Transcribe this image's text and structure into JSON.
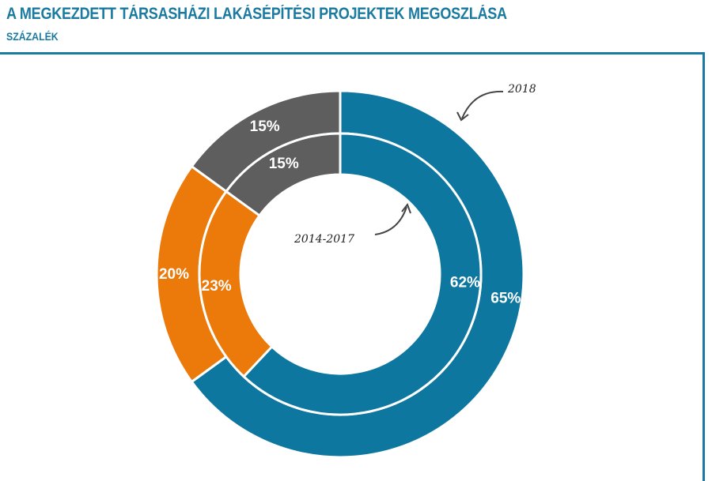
{
  "title": "A MEGKEZDETT TÁRSASHÁZI LAKÁSÉPÍTÉSI PROJEKTEK MEGOSZLÁSA",
  "subtitle": "SZÁZALÉK",
  "chart_data": {
    "type": "pie",
    "variant": "double-donut",
    "title": "A MEGKEZDETT TÁRSASHÁZI LAKÁSÉPÍTÉSI PROJEKTEK MEGOSZLÁSA",
    "subtitle": "SZÁZALÉK",
    "legend": "none",
    "colors": [
      "#0d77a0",
      "#eb7a0a",
      "#5e5e5e"
    ],
    "rings": [
      {
        "name": "2018",
        "position": "outer",
        "values": [
          65,
          20,
          15
        ],
        "labels": [
          "65%",
          "20%",
          "15%"
        ]
      },
      {
        "name": "2014-2017",
        "position": "inner",
        "values": [
          62,
          23,
          15
        ],
        "labels": [
          "62%",
          "23%",
          "15%"
        ]
      }
    ]
  }
}
